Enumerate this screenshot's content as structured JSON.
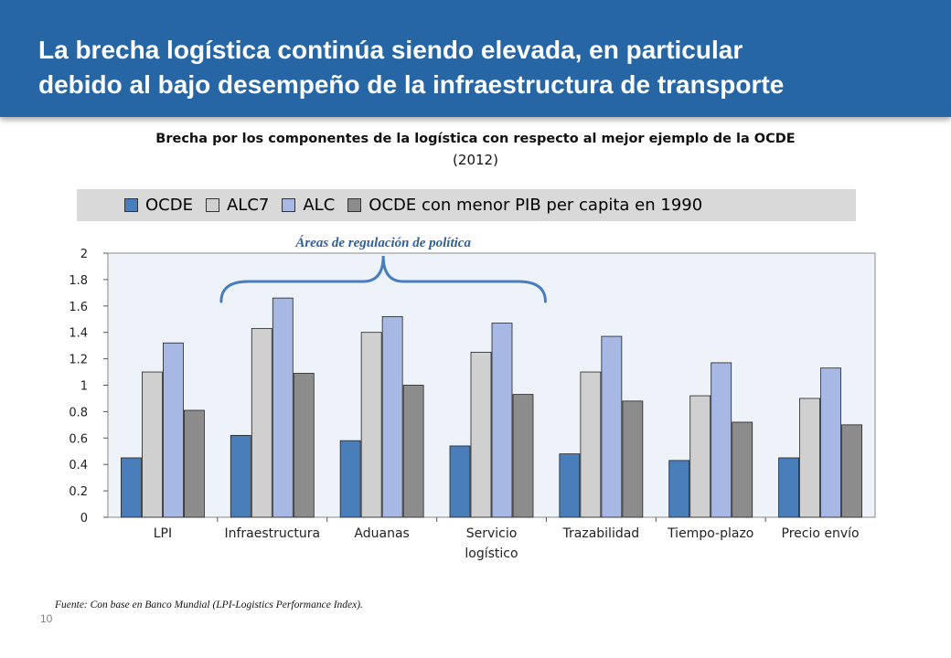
{
  "slide": {
    "title_line1": "La brecha logística continúa siendo elevada, en particular",
    "title_line2": "debido al bajo desempeño de la infraestructura de transporte",
    "source": "Fuente: Con base en Banco Mundial (LPI-Logistics Performance Index).",
    "page_number": "10"
  },
  "chart_data": {
    "type": "bar",
    "title": "Brecha por los componentes de la logística  con respecto al mejor ejemplo de la OCDE",
    "subtitle": "(2012)",
    "categories": [
      [
        "LPI"
      ],
      [
        "Infraestructura"
      ],
      [
        "Aduanas"
      ],
      [
        "Servicio",
        "logístico"
      ],
      [
        "Trazabilidad"
      ],
      [
        "Tiempo-plazo"
      ],
      [
        "Precio envío"
      ]
    ],
    "series": [
      {
        "name": "OCDE",
        "color": "#4a7ebb",
        "values": [
          0.45,
          0.62,
          0.58,
          0.54,
          0.48,
          0.43,
          0.45
        ]
      },
      {
        "name": "ALC7",
        "color": "#d0d0d0",
        "values": [
          1.1,
          1.43,
          1.4,
          1.25,
          1.1,
          0.92,
          0.9
        ]
      },
      {
        "name": "ALC",
        "color": "#a7b8e5",
        "values": [
          1.32,
          1.66,
          1.52,
          1.47,
          1.37,
          1.17,
          1.13
        ]
      },
      {
        "name": "OCDE con menor PIB per capita en 1990",
        "color": "#8c8c8c",
        "values": [
          0.81,
          1.09,
          1.0,
          0.93,
          0.88,
          0.72,
          0.7
        ]
      }
    ],
    "ylim": [
      0,
      2
    ],
    "yticks": [
      "0",
      "0.2",
      "0.4",
      "0.6",
      "0.8",
      "1",
      "1.2",
      "1.4",
      "1.6",
      "1.8",
      "2"
    ],
    "annotation": "Áreas de regulación de política",
    "annotation_span": [
      "Infraestructura",
      "Servicio logístico"
    ],
    "grid": false,
    "legend_position": "top"
  }
}
